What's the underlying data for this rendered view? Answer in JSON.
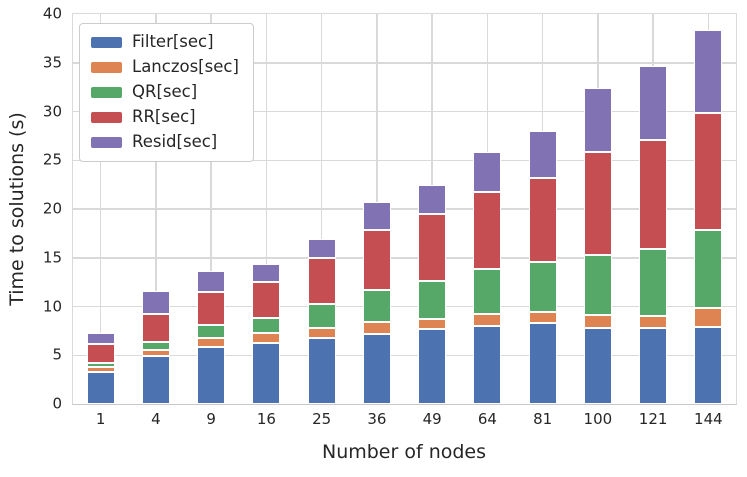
{
  "style": {
    "background": "#FFFFFF",
    "grid_color": "#D9D9D9",
    "spine_color": "#C9C9C9",
    "text_color": "#262626",
    "legend_border_color": "#CCCCCC",
    "segment_edge_color": "#FFFFFF"
  },
  "chart_data": {
    "type": "bar",
    "stacked": true,
    "title": "",
    "xlabel": "Number of nodes",
    "ylabel": "Time to solutions (s)",
    "categories": [
      "1",
      "4",
      "9",
      "16",
      "25",
      "36",
      "49",
      "64",
      "81",
      "100",
      "121",
      "144"
    ],
    "series": [
      {
        "name": "Filter[sec]",
        "color": "#4C72B0",
        "values": [
          3.3,
          4.9,
          5.8,
          6.3,
          6.8,
          7.2,
          7.7,
          8.0,
          8.3,
          7.8,
          7.8,
          7.9
        ]
      },
      {
        "name": "Lanczos[sec]",
        "color": "#DD8452",
        "values": [
          0.45,
          0.6,
          0.95,
          1.0,
          1.0,
          1.2,
          1.0,
          1.2,
          1.1,
          1.3,
          1.2,
          1.9
        ]
      },
      {
        "name": "QR[sec]",
        "color": "#55A868",
        "values": [
          0.5,
          0.9,
          1.4,
          1.5,
          2.5,
          3.3,
          3.9,
          4.7,
          5.2,
          6.2,
          6.9,
          8.0
        ]
      },
      {
        "name": "RR[sec]",
        "color": "#C44E52",
        "values": [
          1.9,
          2.8,
          3.3,
          3.7,
          4.7,
          6.1,
          6.9,
          7.8,
          8.6,
          10.6,
          11.2,
          12.1
        ]
      },
      {
        "name": "Resid[sec]",
        "color": "#8172B3",
        "values": [
          1.1,
          2.4,
          2.2,
          1.9,
          1.9,
          2.9,
          3.0,
          4.2,
          4.8,
          6.5,
          7.6,
          8.5
        ]
      }
    ],
    "stack_totals": [
      7.25,
      11.6,
      13.65,
      14.4,
      16.9,
      20.7,
      22.5,
      25.9,
      28.0,
      32.4,
      34.7,
      38.4
    ],
    "ylim": [
      0,
      40
    ],
    "yticks": [
      0,
      5,
      10,
      15,
      20,
      25,
      30,
      35,
      40
    ],
    "grid": true,
    "legend_position": "upper-left"
  }
}
